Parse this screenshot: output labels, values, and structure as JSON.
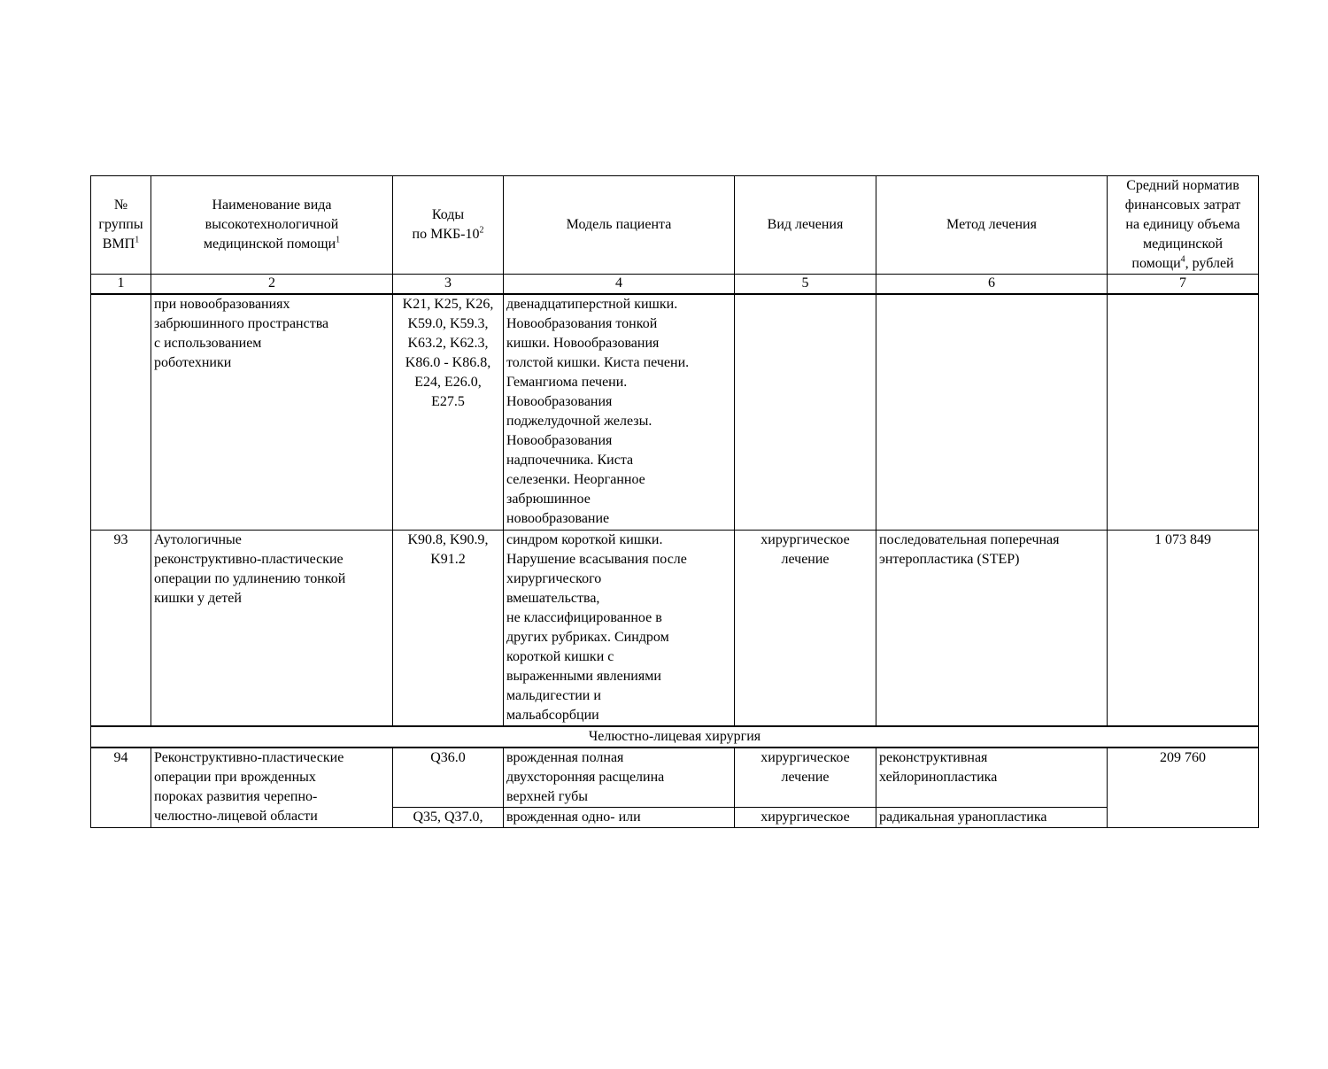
{
  "header": {
    "col1": "№\nгруппы\nВМП",
    "col1_sup": "1",
    "col2": "Наименование вида\nвысокотехнологичной\nмедицинской помощи",
    "col2_sup": "1",
    "col3": "Коды\nпо МКБ-10",
    "col3_sup": "2",
    "col4": "Модель пациента",
    "col5": "Вид лечения",
    "col6": "Метод лечения",
    "col7_a": "Средний норматив\nфинансовых затрат\nна единицу объема\nмедицинской\nпомощи",
    "col7_sup": "4",
    "col7_b": ", рублей"
  },
  "column_numbers": [
    "1",
    "2",
    "3",
    "4",
    "5",
    "6",
    "7"
  ],
  "rows": [
    {
      "group": "",
      "name": "при новообразованиях\nзабрюшинного пространства\nс использованием\nроботехники",
      "codes": "K21, K25, K26,\nK59.0, K59.3,\nK63.2, K62.3,\nK86.0 - K86.8,\nE24, E26.0,\nE27.5",
      "model": "двенадцатиперстной кишки.\nНовообразования тонкой\nкишки. Новообразования\nтолстой кишки. Киста печени.\nГемангиома печени.\nНовообразования\nподжелудочной железы.\nНовообразования\nнадпочечника. Киста\nселезенки. Неорганное\nзабрюшинное\nновообразование",
      "treatment": "",
      "method": "",
      "cost": ""
    },
    {
      "group": "93",
      "name": "Аутологичные\nреконструктивно-пластические\nоперации по удлинению тонкой\nкишки у детей",
      "codes": "K90.8, K90.9,\nK91.2",
      "model": "синдром короткой кишки.\nНарушение всасывания после\nхирургического\nвмешательства,\nне классифицированное в\nдругих рубриках. Синдром\nкороткой кишки с\nвыраженными явлениями\nмальдигестии и\nмальабсорбции",
      "treatment": "хирургическое\nлечение",
      "method": "последовательная поперечная\nэнтеропластика (STEP)",
      "cost": "1 073 849"
    }
  ],
  "section": "Челюстно-лицевая хирургия",
  "row94": {
    "group": "94",
    "name": "Реконструктивно-пластические\nоперации при врожденных\nпороках развития черепно-\nчелюстно-лицевой области",
    "cost": "209 760",
    "sub": [
      {
        "codes": "Q36.0",
        "model": "врожденная полная\nдвухсторонняя расщелина\nверхней губы",
        "treatment": "хирургическое\nлечение",
        "method": "реконструктивная\nхейлоринопластика"
      },
      {
        "codes": "Q35, Q37.0,",
        "model": "врожденная одно- или",
        "treatment": "хирургическое",
        "method": "радикальная уранопластика"
      }
    ]
  }
}
